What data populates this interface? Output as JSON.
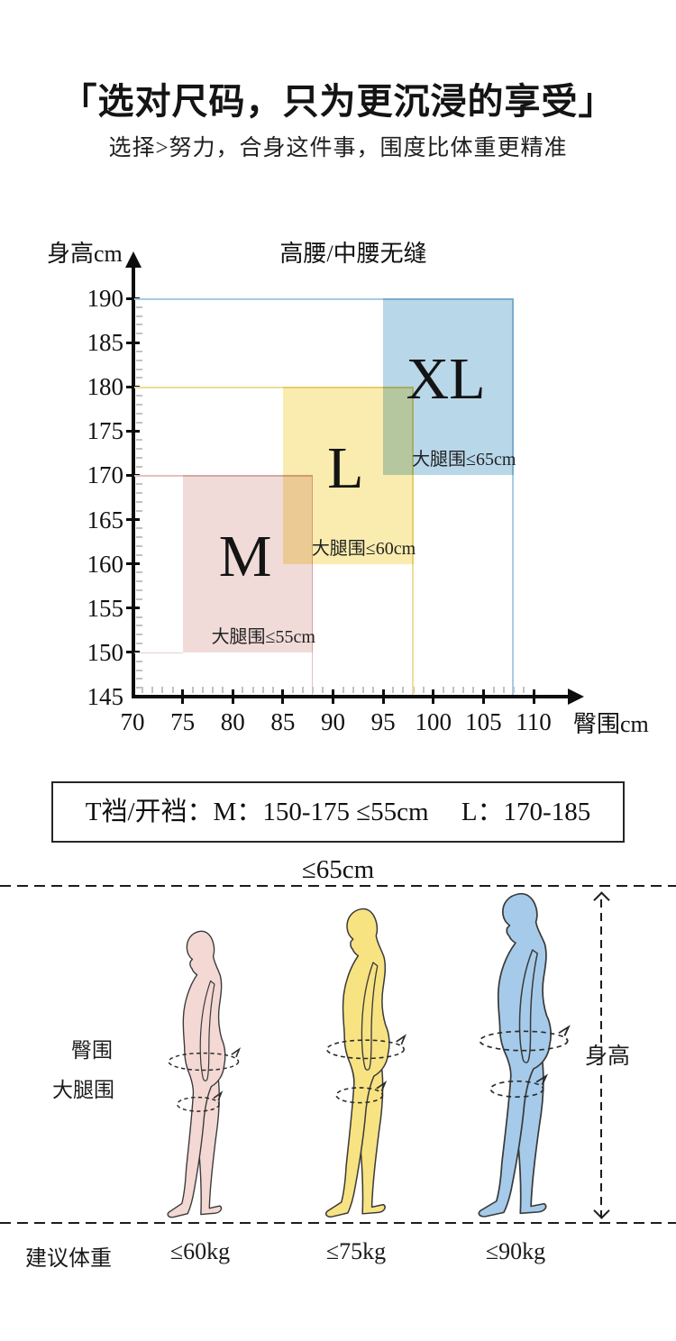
{
  "header": {
    "title": "「选对尺码，只为更沉浸的享受」",
    "subtitle": "选择>努力，合身这件事，围度比体重更精准"
  },
  "chart_data": {
    "type": "area",
    "title": "高腰/中腰无缝",
    "xlabel": "臀围cm",
    "ylabel": "身高cm",
    "x_ticks": [
      70,
      75,
      80,
      85,
      90,
      95,
      100,
      105,
      110
    ],
    "y_ticks": [
      145,
      150,
      155,
      160,
      165,
      170,
      175,
      180,
      185,
      190
    ],
    "xlim": [
      70,
      112
    ],
    "ylim": [
      145,
      192
    ],
    "grid": false,
    "legend": "none",
    "regions": [
      {
        "size": "M",
        "hip_cm": [
          75,
          88
        ],
        "height_cm": [
          150,
          170
        ],
        "thigh": "大腿围≤55cm",
        "fill": "#f0dbd9",
        "line": "#e2c2be",
        "bottom_guide": true
      },
      {
        "size": "L",
        "hip_cm": [
          85,
          98
        ],
        "height_cm": [
          160,
          180
        ],
        "thigh": "大腿围≤60cm",
        "fill": "#faecae",
        "line": "#eddd9b"
      },
      {
        "size": "XL",
        "hip_cm": [
          95,
          108
        ],
        "height_cm": [
          170,
          190
        ],
        "thigh": "大腿围≤65cm",
        "fill": "#b8d7e9",
        "line": "#a9cbe2"
      }
    ]
  },
  "crotch_box": {
    "text": "T裆/开裆：M：150-175 ≤55cm　 L：170-185 ≤65cm"
  },
  "figure_section": {
    "hip_label": "臀围",
    "thigh_label": "大腿围",
    "height_label": "身高",
    "weight_title": "建议体重",
    "figures": [
      {
        "size": "M",
        "weight": "≤60kg",
        "fill": "#f3d8d4",
        "outline": "#3a3a3a"
      },
      {
        "size": "L",
        "weight": "≤75kg",
        "fill": "#f8e383",
        "outline": "#3a3a3a"
      },
      {
        "size": "XL",
        "weight": "≤90kg",
        "fill": "#a6cbea",
        "outline": "#3a3a3a"
      }
    ]
  }
}
